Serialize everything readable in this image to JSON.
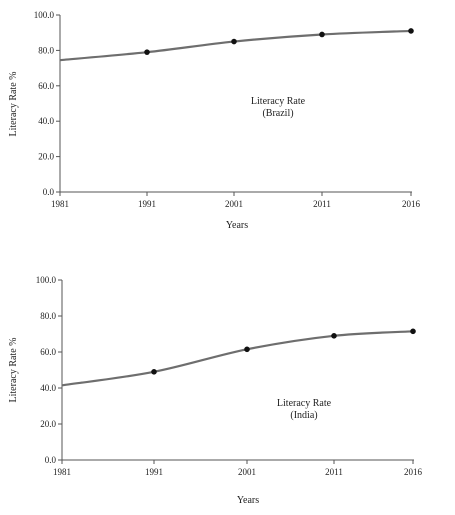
{
  "chart_data": [
    {
      "type": "line",
      "annotation": [
        "Literacy Rate",
        "(Brazil)"
      ],
      "xlabel": "Years",
      "ylabel": "Literacy Rate %",
      "x": [
        1981,
        1991,
        2001,
        2011,
        2016
      ],
      "x_tick_labels": [
        "1981",
        "1991",
        "2001",
        "2011",
        "2016"
      ],
      "y_tick_labels": [
        "0.0",
        "20.0",
        "40.0",
        "60.0",
        "80.0",
        "100.0"
      ],
      "y_ticks": [
        0,
        20,
        40,
        60,
        80,
        100
      ],
      "ylim": [
        0,
        100
      ],
      "grid": false,
      "series": [
        {
          "values": [
            74.5,
            79,
            85,
            89,
            91
          ],
          "markers_at": [
            1991,
            2001,
            2011,
            2016
          ]
        }
      ]
    },
    {
      "type": "line",
      "annotation": [
        "Literacy Rate",
        "(India)"
      ],
      "xlabel": "Years",
      "ylabel": "Literacy Rate %",
      "x": [
        1981,
        1991,
        2001,
        2011,
        2016
      ],
      "x_tick_labels": [
        "1981",
        "1991",
        "2001",
        "2011",
        "2016"
      ],
      "y_tick_labels": [
        "0.0",
        "20.0",
        "40.0",
        "60.0",
        "80.0",
        "100.0"
      ],
      "y_ticks": [
        0,
        20,
        40,
        60,
        80,
        100
      ],
      "ylim": [
        0,
        100
      ],
      "grid": false,
      "series": [
        {
          "values": [
            41.5,
            49,
            61.5,
            69,
            71.5
          ],
          "markers_at": [
            1991,
            2001,
            2011,
            2016
          ]
        }
      ]
    }
  ]
}
